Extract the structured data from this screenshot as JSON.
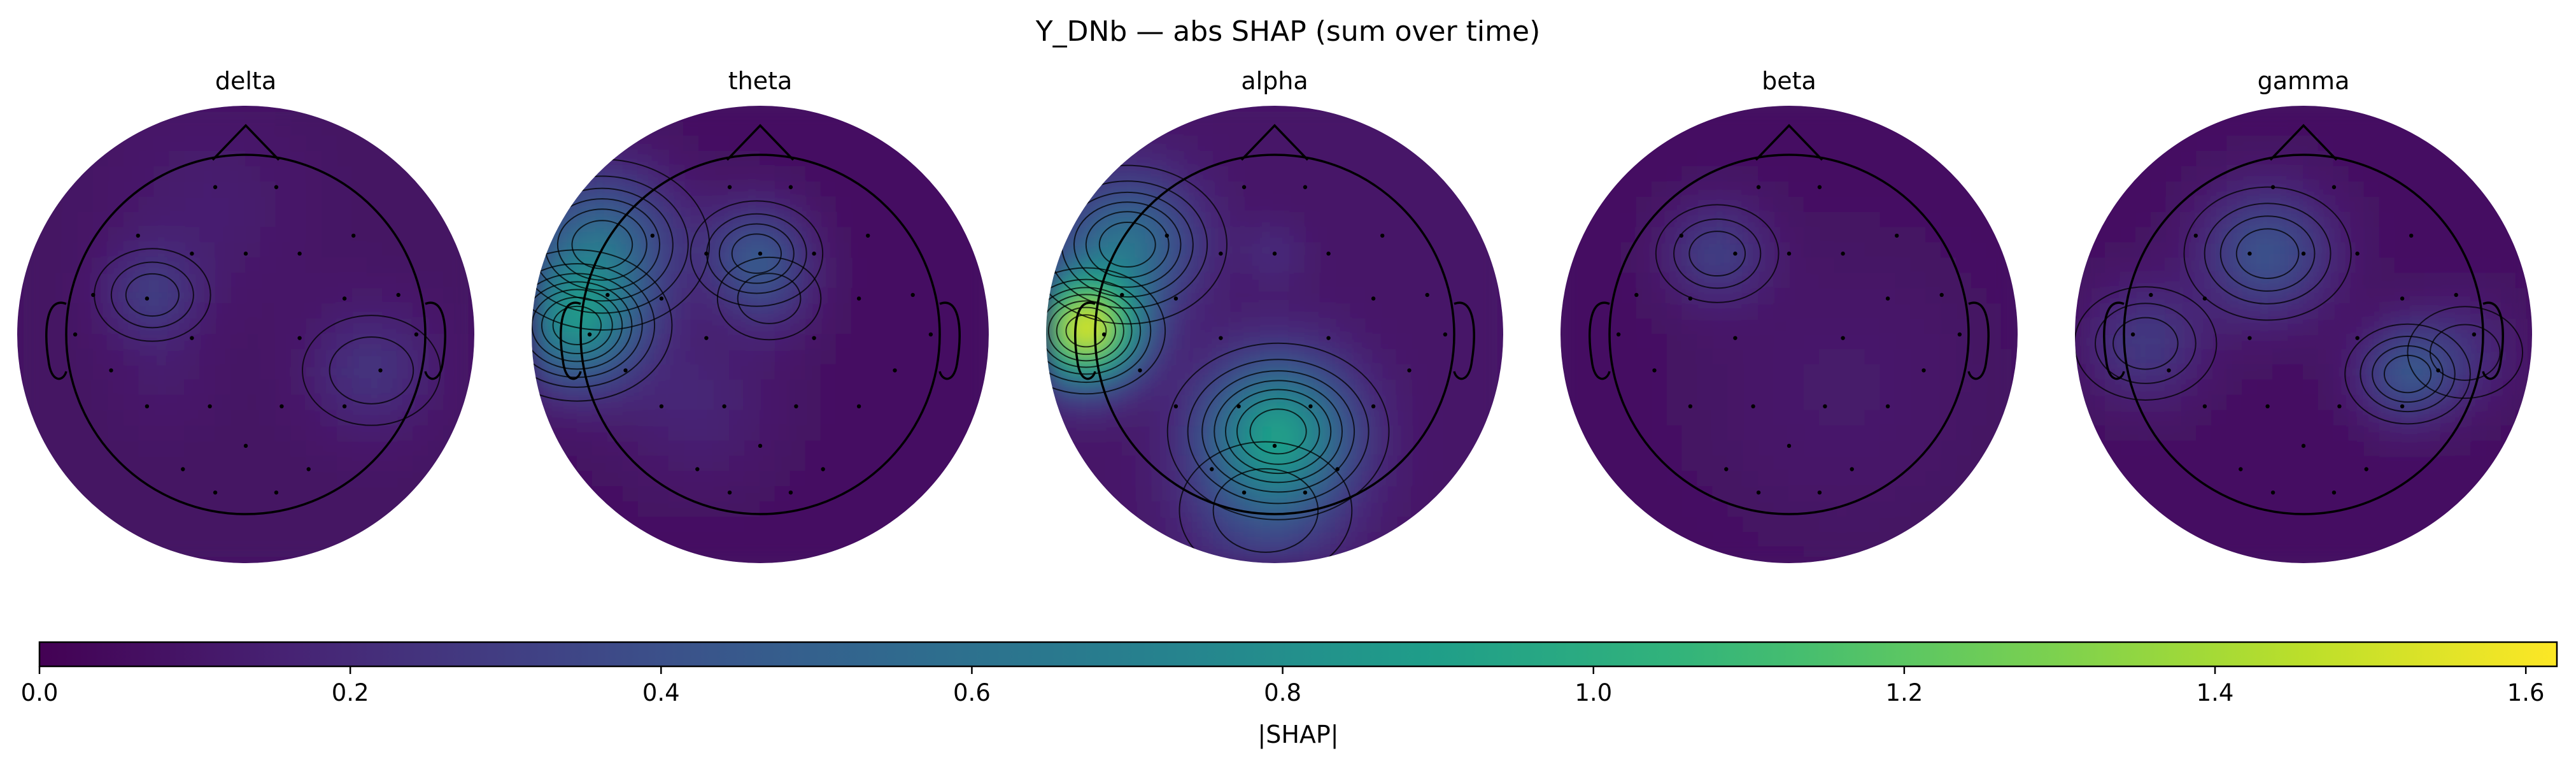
{
  "chart_data": {
    "type": "heatmap",
    "title": "Y_DNb — abs SHAP (sum over time)",
    "colormap": "viridis",
    "colorbar": {
      "label": "|SHAP|",
      "range": [
        0.0,
        1.62
      ],
      "ticks": [
        0.0,
        0.2,
        0.4,
        0.6,
        0.8,
        1.0,
        1.2,
        1.4,
        1.6
      ],
      "tick_labels": [
        "0.0",
        "0.2",
        "0.4",
        "0.6",
        "0.8",
        "1.0",
        "1.2",
        "1.4",
        "1.6"
      ]
    },
    "panels": [
      {
        "name": "delta",
        "background": 0.08,
        "hotspots": [
          {
            "u": -0.52,
            "v": 0.22,
            "value": 0.28,
            "s": 0.18
          },
          {
            "u": 0.7,
            "v": -0.2,
            "value": 0.24,
            "s": 0.24
          },
          {
            "u": -0.45,
            "v": -0.25,
            "value": 0.12,
            "s": 0.2
          },
          {
            "u": -0.2,
            "v": 0.7,
            "value": 0.14,
            "s": 0.35
          }
        ]
      },
      {
        "name": "theta",
        "background": 0.07,
        "hotspots": [
          {
            "u": -1.02,
            "v": 0.05,
            "value": 0.74,
            "s": 0.24
          },
          {
            "u": -0.88,
            "v": 0.5,
            "value": 0.55,
            "s": 0.28
          },
          {
            "u": -0.02,
            "v": 0.45,
            "value": 0.4,
            "s": 0.19
          },
          {
            "u": -0.35,
            "v": -0.38,
            "value": 0.17,
            "s": 0.3
          },
          {
            "u": 0.05,
            "v": 0.2,
            "value": 0.2,
            "s": 0.18
          }
        ]
      },
      {
        "name": "alpha",
        "background": 0.1,
        "hotspots": [
          {
            "u": -1.05,
            "v": 0.02,
            "value": 1.5,
            "s": 0.2
          },
          {
            "u": -0.82,
            "v": 0.5,
            "value": 0.6,
            "s": 0.26
          },
          {
            "u": 0.02,
            "v": -0.54,
            "value": 0.85,
            "s": 0.28
          },
          {
            "u": -0.05,
            "v": -0.98,
            "value": 0.3,
            "s": 0.3
          },
          {
            "u": 0.0,
            "v": 0.45,
            "value": 0.2,
            "s": 0.12
          }
        ]
      },
      {
        "name": "beta",
        "background": 0.07,
        "hotspots": [
          {
            "u": -0.4,
            "v": 0.45,
            "value": 0.3,
            "s": 0.19
          },
          {
            "u": 0.3,
            "v": -0.3,
            "value": 0.12,
            "s": 0.5
          }
        ]
      },
      {
        "name": "gamma",
        "background": 0.07,
        "hotspots": [
          {
            "u": -0.2,
            "v": 0.45,
            "value": 0.42,
            "s": 0.24
          },
          {
            "u": 0.58,
            "v": -0.22,
            "value": 0.42,
            "s": 0.18
          },
          {
            "u": -0.88,
            "v": -0.05,
            "value": 0.28,
            "s": 0.22
          },
          {
            "u": 0.9,
            "v": -0.1,
            "value": 0.2,
            "s": 0.2
          }
        ]
      }
    ]
  }
}
